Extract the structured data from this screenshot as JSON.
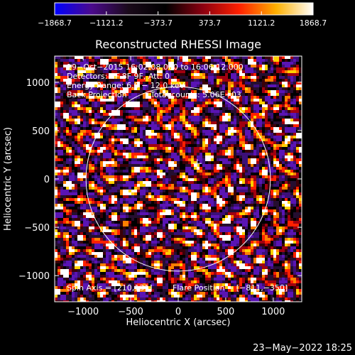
{
  "chart_data": {
    "type": "heatmap",
    "title": "Reconstructed RHESSI Image",
    "xlabel": "Heliocentric X (arcsec)",
    "ylabel": "Heliocentric Y (arcsec)",
    "xlim": [
      -1300,
      1300
    ],
    "ylim": [
      -1270,
      1270
    ],
    "x_ticks": [
      -1000,
      -500,
      0,
      500,
      1000
    ],
    "x_tick_labels": [
      "−1000",
      "−500",
      "0",
      "500",
      "1000"
    ],
    "y_ticks": [
      -1000,
      -500,
      0,
      500,
      1000
    ],
    "y_tick_labels": [
      "−1000",
      "−500",
      "0",
      "500",
      "1000"
    ],
    "colorbar": {
      "range": [
        -1868.7,
        1868.7
      ],
      "ticks": [
        -1868.7,
        -1121.2,
        -373.7,
        373.7,
        1121.2,
        1868.7
      ],
      "tick_labels": [
        "−1868.7",
        "−1121.2",
        "−373.7",
        "373.7",
        "1121.2",
        "1868.7"
      ],
      "colors": [
        "#0000ff",
        "#4b0a8c",
        "#1a0a1a",
        "#000000",
        "#8a0010",
        "#ff2000",
        "#ffb000",
        "#ffffff"
      ]
    },
    "solar_limb_radius_arcsec": 970,
    "flare_position": [
      -811,
      -350
    ],
    "marker_cross_arcsec": [
      200,
      160
    ],
    "annotations": {
      "time_range": "19−Oct−2015 16:02:08.000 to 16:06:12.000",
      "detectors": "Detectors: 7F 8F 9F, Att: 0",
      "energy": "Energy Range: 6.0 − 12.0 keV",
      "method": "Back Projection",
      "total_counts": "Total counts: 5.06E+03",
      "spin_axis": "Spin Axis = [210,131]",
      "flare_position_text": "Flare Position = [−811,−350]"
    },
    "footer_date": "23−May−2022 18:25"
  }
}
